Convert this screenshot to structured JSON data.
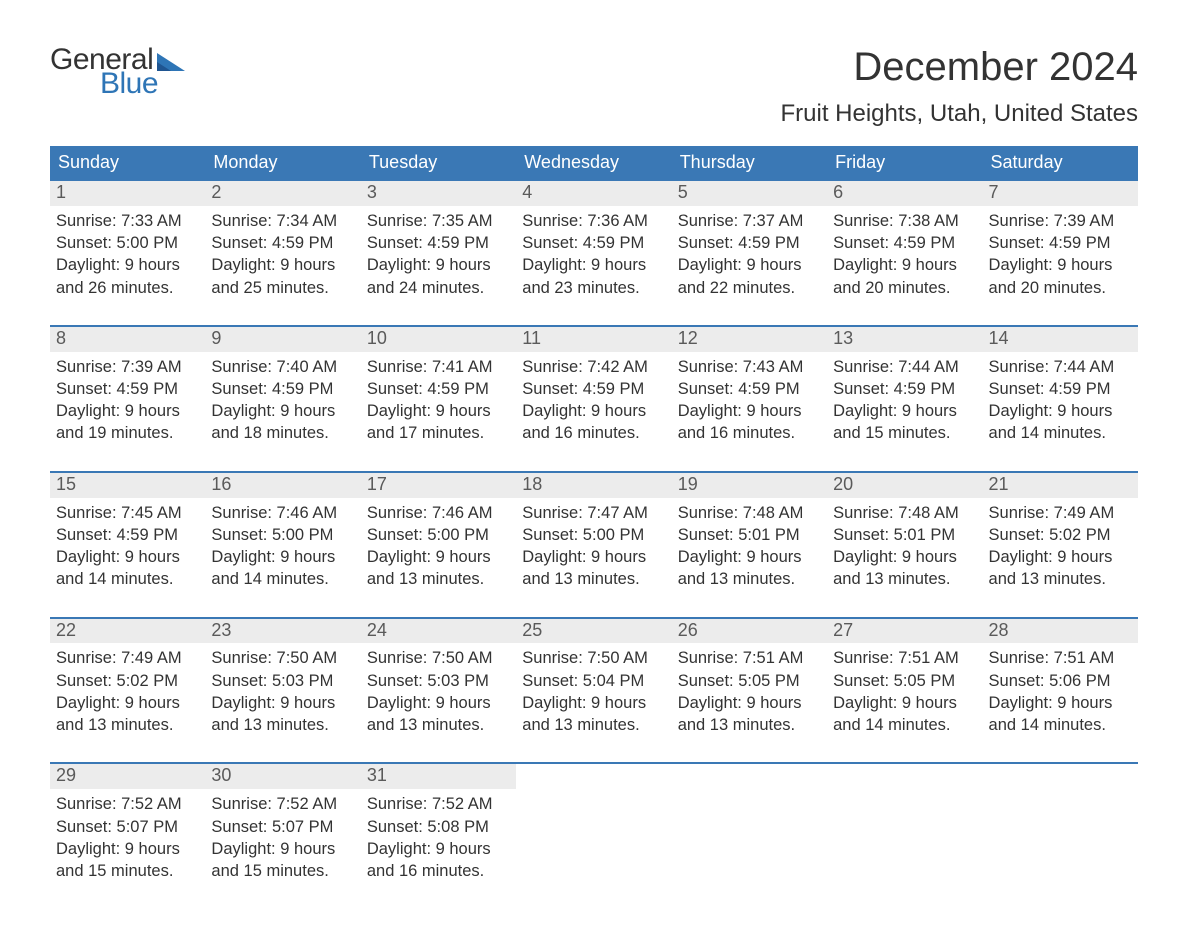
{
  "logo": {
    "general": "General",
    "blue": "Blue"
  },
  "title": "December 2024",
  "location": "Fruit Heights, Utah, United States",
  "colors": {
    "header_bg": "#3a78b5",
    "header_text": "#ffffff",
    "daynum_bg": "#ececec",
    "daynum_text": "#5a5a5a",
    "body_text": "#333333",
    "logo_blue": "#2e75b6",
    "week_border": "#3a78b5",
    "background": "#ffffff"
  },
  "weekdays": [
    "Sunday",
    "Monday",
    "Tuesday",
    "Wednesday",
    "Thursday",
    "Friday",
    "Saturday"
  ],
  "labels": {
    "sunrise": "Sunrise:",
    "sunset": "Sunset:",
    "daylight_prefix": "Daylight:"
  },
  "weeks": [
    [
      {
        "n": "1",
        "sr": "7:33 AM",
        "ss": "5:00 PM",
        "dl1": "Daylight: 9 hours",
        "dl2": "and 26 minutes."
      },
      {
        "n": "2",
        "sr": "7:34 AM",
        "ss": "4:59 PM",
        "dl1": "Daylight: 9 hours",
        "dl2": "and 25 minutes."
      },
      {
        "n": "3",
        "sr": "7:35 AM",
        "ss": "4:59 PM",
        "dl1": "Daylight: 9 hours",
        "dl2": "and 24 minutes."
      },
      {
        "n": "4",
        "sr": "7:36 AM",
        "ss": "4:59 PM",
        "dl1": "Daylight: 9 hours",
        "dl2": "and 23 minutes."
      },
      {
        "n": "5",
        "sr": "7:37 AM",
        "ss": "4:59 PM",
        "dl1": "Daylight: 9 hours",
        "dl2": "and 22 minutes."
      },
      {
        "n": "6",
        "sr": "7:38 AM",
        "ss": "4:59 PM",
        "dl1": "Daylight: 9 hours",
        "dl2": "and 20 minutes."
      },
      {
        "n": "7",
        "sr": "7:39 AM",
        "ss": "4:59 PM",
        "dl1": "Daylight: 9 hours",
        "dl2": "and 20 minutes."
      }
    ],
    [
      {
        "n": "8",
        "sr": "7:39 AM",
        "ss": "4:59 PM",
        "dl1": "Daylight: 9 hours",
        "dl2": "and 19 minutes."
      },
      {
        "n": "9",
        "sr": "7:40 AM",
        "ss": "4:59 PM",
        "dl1": "Daylight: 9 hours",
        "dl2": "and 18 minutes."
      },
      {
        "n": "10",
        "sr": "7:41 AM",
        "ss": "4:59 PM",
        "dl1": "Daylight: 9 hours",
        "dl2": "and 17 minutes."
      },
      {
        "n": "11",
        "sr": "7:42 AM",
        "ss": "4:59 PM",
        "dl1": "Daylight: 9 hours",
        "dl2": "and 16 minutes."
      },
      {
        "n": "12",
        "sr": "7:43 AM",
        "ss": "4:59 PM",
        "dl1": "Daylight: 9 hours",
        "dl2": "and 16 minutes."
      },
      {
        "n": "13",
        "sr": "7:44 AM",
        "ss": "4:59 PM",
        "dl1": "Daylight: 9 hours",
        "dl2": "and 15 minutes."
      },
      {
        "n": "14",
        "sr": "7:44 AM",
        "ss": "4:59 PM",
        "dl1": "Daylight: 9 hours",
        "dl2": "and 14 minutes."
      }
    ],
    [
      {
        "n": "15",
        "sr": "7:45 AM",
        "ss": "4:59 PM",
        "dl1": "Daylight: 9 hours",
        "dl2": "and 14 minutes."
      },
      {
        "n": "16",
        "sr": "7:46 AM",
        "ss": "5:00 PM",
        "dl1": "Daylight: 9 hours",
        "dl2": "and 14 minutes."
      },
      {
        "n": "17",
        "sr": "7:46 AM",
        "ss": "5:00 PM",
        "dl1": "Daylight: 9 hours",
        "dl2": "and 13 minutes."
      },
      {
        "n": "18",
        "sr": "7:47 AM",
        "ss": "5:00 PM",
        "dl1": "Daylight: 9 hours",
        "dl2": "and 13 minutes."
      },
      {
        "n": "19",
        "sr": "7:48 AM",
        "ss": "5:01 PM",
        "dl1": "Daylight: 9 hours",
        "dl2": "and 13 minutes."
      },
      {
        "n": "20",
        "sr": "7:48 AM",
        "ss": "5:01 PM",
        "dl1": "Daylight: 9 hours",
        "dl2": "and 13 minutes."
      },
      {
        "n": "21",
        "sr": "7:49 AM",
        "ss": "5:02 PM",
        "dl1": "Daylight: 9 hours",
        "dl2": "and 13 minutes."
      }
    ],
    [
      {
        "n": "22",
        "sr": "7:49 AM",
        "ss": "5:02 PM",
        "dl1": "Daylight: 9 hours",
        "dl2": "and 13 minutes."
      },
      {
        "n": "23",
        "sr": "7:50 AM",
        "ss": "5:03 PM",
        "dl1": "Daylight: 9 hours",
        "dl2": "and 13 minutes."
      },
      {
        "n": "24",
        "sr": "7:50 AM",
        "ss": "5:03 PM",
        "dl1": "Daylight: 9 hours",
        "dl2": "and 13 minutes."
      },
      {
        "n": "25",
        "sr": "7:50 AM",
        "ss": "5:04 PM",
        "dl1": "Daylight: 9 hours",
        "dl2": "and 13 minutes."
      },
      {
        "n": "26",
        "sr": "7:51 AM",
        "ss": "5:05 PM",
        "dl1": "Daylight: 9 hours",
        "dl2": "and 13 minutes."
      },
      {
        "n": "27",
        "sr": "7:51 AM",
        "ss": "5:05 PM",
        "dl1": "Daylight: 9 hours",
        "dl2": "and 14 minutes."
      },
      {
        "n": "28",
        "sr": "7:51 AM",
        "ss": "5:06 PM",
        "dl1": "Daylight: 9 hours",
        "dl2": "and 14 minutes."
      }
    ],
    [
      {
        "n": "29",
        "sr": "7:52 AM",
        "ss": "5:07 PM",
        "dl1": "Daylight: 9 hours",
        "dl2": "and 15 minutes."
      },
      {
        "n": "30",
        "sr": "7:52 AM",
        "ss": "5:07 PM",
        "dl1": "Daylight: 9 hours",
        "dl2": "and 15 minutes."
      },
      {
        "n": "31",
        "sr": "7:52 AM",
        "ss": "5:08 PM",
        "dl1": "Daylight: 9 hours",
        "dl2": "and 16 minutes."
      },
      null,
      null,
      null,
      null
    ]
  ]
}
